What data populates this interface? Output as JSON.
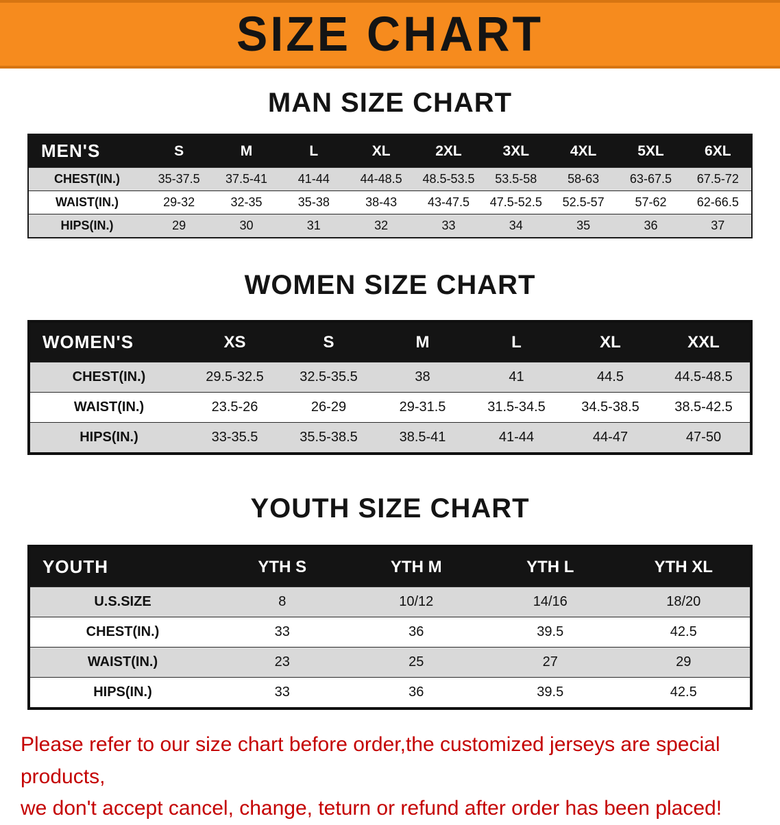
{
  "colors": {
    "banner_bg": "#f68b1e",
    "banner_text": "#141414",
    "header_bg": "#141414",
    "header_text": "#ffffff",
    "stripe": "#d9d9d9",
    "notice": "#c40000"
  },
  "banner": {
    "title": "SIZE CHART"
  },
  "men": {
    "heading": "MAN SIZE CHART",
    "header": [
      "MEN'S",
      "S",
      "M",
      "L",
      "XL",
      "2XL",
      "3XL",
      "4XL",
      "5XL",
      "6XL"
    ],
    "rows": [
      {
        "label": "CHEST(IN.)",
        "values": [
          "35-37.5",
          "37.5-41",
          "41-44",
          "44-48.5",
          "48.5-53.5",
          "53.5-58",
          "58-63",
          "63-67.5",
          "67.5-72"
        ]
      },
      {
        "label": "WAIST(IN.)",
        "values": [
          "29-32",
          "32-35",
          "35-38",
          "38-43",
          "43-47.5",
          "47.5-52.5",
          "52.5-57",
          "57-62",
          "62-66.5"
        ]
      },
      {
        "label": "HIPS(IN.)",
        "values": [
          "29",
          "30",
          "31",
          "32",
          "33",
          "34",
          "35",
          "36",
          "37"
        ]
      }
    ]
  },
  "women": {
    "heading": "WOMEN SIZE CHART",
    "header": [
      "WOMEN'S",
      "XS",
      "S",
      "M",
      "L",
      "XL",
      "XXL"
    ],
    "rows": [
      {
        "label": "CHEST(IN.)",
        "values": [
          "29.5-32.5",
          "32.5-35.5",
          "38",
          "41",
          "44.5",
          "44.5-48.5"
        ]
      },
      {
        "label": "WAIST(IN.)",
        "values": [
          "23.5-26",
          "26-29",
          "29-31.5",
          "31.5-34.5",
          "34.5-38.5",
          "38.5-42.5"
        ]
      },
      {
        "label": "HIPS(IN.)",
        "values": [
          "33-35.5",
          "35.5-38.5",
          "38.5-41",
          "41-44",
          "44-47",
          "47-50"
        ]
      }
    ]
  },
  "youth": {
    "heading": "YOUTH SIZE CHART",
    "header": [
      "YOUTH",
      "YTH S",
      "YTH M",
      "YTH L",
      "YTH XL"
    ],
    "rows": [
      {
        "label": "U.S.SIZE",
        "values": [
          "8",
          "10/12",
          "14/16",
          "18/20"
        ]
      },
      {
        "label": "CHEST(IN.)",
        "values": [
          "33",
          "36",
          "39.5",
          "42.5"
        ]
      },
      {
        "label": "WAIST(IN.)",
        "values": [
          "23",
          "25",
          "27",
          "29"
        ]
      },
      {
        "label": "HIPS(IN.)",
        "values": [
          "33",
          "36",
          "39.5",
          "42.5"
        ]
      }
    ]
  },
  "footer": {
    "line1": "Please refer to our size chart before order,the customized jerseys are special products,",
    "line2": "we don't accept cancel, change, teturn or refund after order has been placed!"
  }
}
